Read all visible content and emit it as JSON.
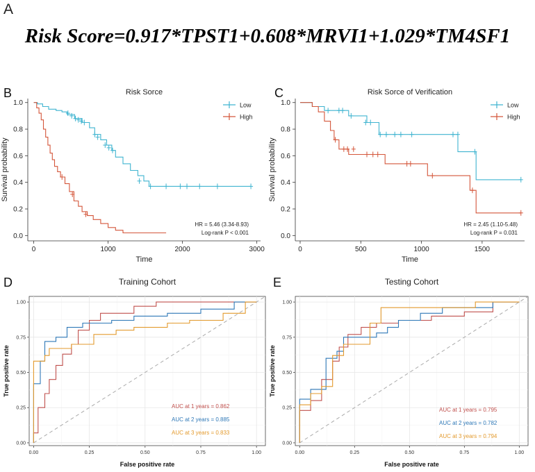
{
  "panel_letters": {
    "a": "A",
    "b": "B",
    "c": "C",
    "d": "D",
    "e": "E"
  },
  "formula": "Risk Score=0.917*TPST1+0.608*MRVI1+1.029*TM4SF1",
  "colors": {
    "low": "#3fb4d0",
    "high": "#d4563a",
    "auc1": "#c0504d",
    "auc2": "#2e78b7",
    "auc3": "#e39a2d",
    "diag": "#aaaaaa",
    "grid": "#e6e6e6",
    "roc_bg": "#ffffff"
  },
  "chart_data": [
    {
      "id": "B",
      "type": "line",
      "subtype": "kaplan-meier",
      "title": "Risk Sorce",
      "xlabel": "Time",
      "ylabel": "Survival probability",
      "xlim": [
        -80,
        3050
      ],
      "ylim": [
        -0.04,
        1.03
      ],
      "xticks": [
        0,
        1000,
        2000,
        3000
      ],
      "yticks": [
        0.0,
        0.2,
        0.4,
        0.6,
        0.8,
        1.0
      ],
      "ytick_labels": [
        "0.0",
        "0.2",
        "0.4",
        "0.6",
        "0.8",
        "1.0"
      ],
      "legend": [
        "Low",
        "High"
      ],
      "annotations": [
        "HR = 5.46 (3.34-8.93)",
        "Log-rank P < 0.001"
      ],
      "series": [
        {
          "name": "Low",
          "x": [
            0,
            50,
            120,
            200,
            300,
            380,
            450,
            550,
            650,
            750,
            820,
            900,
            980,
            1050,
            1100,
            1200,
            1300,
            1400,
            1480,
            1550,
            2920
          ],
          "y": [
            1.0,
            0.99,
            0.97,
            0.95,
            0.94,
            0.93,
            0.91,
            0.88,
            0.85,
            0.81,
            0.76,
            0.72,
            0.68,
            0.64,
            0.59,
            0.54,
            0.49,
            0.45,
            0.41,
            0.37,
            0.37
          ],
          "censor_x": [
            460,
            510,
            560,
            600,
            640,
            680,
            820,
            860,
            960,
            1010,
            1060,
            1420,
            1570,
            1780,
            1970,
            2060,
            2230,
            2470,
            2920
          ],
          "censor_y": [
            0.92,
            0.9,
            0.88,
            0.87,
            0.86,
            0.85,
            0.76,
            0.74,
            0.68,
            0.66,
            0.64,
            0.41,
            0.37,
            0.37,
            0.37,
            0.37,
            0.37,
            0.37,
            0.37
          ]
        },
        {
          "name": "High",
          "x": [
            0,
            40,
            70,
            100,
            130,
            160,
            190,
            220,
            250,
            280,
            320,
            360,
            420,
            480,
            540,
            600,
            650,
            720,
            800,
            900,
            1000,
            1100,
            1200,
            1780
          ],
          "y": [
            1.0,
            0.96,
            0.92,
            0.87,
            0.8,
            0.74,
            0.68,
            0.62,
            0.57,
            0.52,
            0.48,
            0.44,
            0.39,
            0.33,
            0.26,
            0.22,
            0.18,
            0.15,
            0.12,
            0.09,
            0.06,
            0.04,
            0.02,
            0.02
          ],
          "censor_x": [
            380,
            520,
            700
          ],
          "censor_y": [
            0.44,
            0.31,
            0.16
          ]
        }
      ]
    },
    {
      "id": "C",
      "type": "line",
      "subtype": "kaplan-meier",
      "title": "Risk Sorce of Verification",
      "xlabel": "Time",
      "ylabel": "Survival probability",
      "xlim": [
        -40,
        1850
      ],
      "ylim": [
        -0.04,
        1.03
      ],
      "xticks": [
        0,
        500,
        1000,
        1500
      ],
      "yticks": [
        0.0,
        0.2,
        0.4,
        0.6,
        0.8,
        1.0
      ],
      "ytick_labels": [
        "0.0",
        "0.2",
        "0.4",
        "0.6",
        "0.8",
        "1.0"
      ],
      "legend": [
        "Low",
        "High"
      ],
      "annotations": [
        "HR = 2.45 (1.10-5.48)",
        "Log-rank P = 0.031"
      ],
      "series": [
        {
          "name": "Low",
          "x": [
            0,
            100,
            200,
            400,
            550,
            650,
            1300,
            1450,
            1820
          ],
          "y": [
            1.0,
            0.97,
            0.94,
            0.9,
            0.85,
            0.76,
            0.63,
            0.42,
            0.42
          ],
          "censor_x": [
            230,
            320,
            350,
            420,
            540,
            580,
            660,
            710,
            780,
            830,
            920,
            1260,
            1300,
            1440,
            1820
          ],
          "censor_y": [
            0.94,
            0.94,
            0.94,
            0.9,
            0.85,
            0.85,
            0.76,
            0.76,
            0.76,
            0.76,
            0.76,
            0.76,
            0.76,
            0.63,
            0.42
          ]
        },
        {
          "name": "High",
          "x": [
            0,
            100,
            150,
            200,
            250,
            280,
            320,
            400,
            500,
            700,
            900,
            1050,
            1400,
            1450,
            1500,
            1820
          ],
          "y": [
            1.0,
            0.97,
            0.93,
            0.86,
            0.79,
            0.72,
            0.65,
            0.61,
            0.61,
            0.54,
            0.54,
            0.45,
            0.34,
            0.17,
            0.17,
            0.17
          ],
          "censor_x": [
            290,
            360,
            390,
            440,
            550,
            600,
            640,
            880,
            910,
            1090,
            1420,
            1820
          ],
          "censor_y": [
            0.72,
            0.65,
            0.65,
            0.65,
            0.61,
            0.61,
            0.61,
            0.54,
            0.54,
            0.45,
            0.34,
            0.17
          ]
        }
      ]
    },
    {
      "id": "D",
      "type": "line",
      "subtype": "roc",
      "title": "Training Cohort",
      "xlabel": "False positive rate",
      "ylabel": "True positive rate",
      "xlim": [
        -0.02,
        1.04
      ],
      "ylim": [
        -0.02,
        1.04
      ],
      "xticks": [
        0.0,
        0.25,
        0.5,
        0.75,
        1.0
      ],
      "xtick_labels": [
        "0.00",
        "0.25",
        "0.50",
        "0.75",
        "1.00"
      ],
      "yticks": [
        0.0,
        0.25,
        0.5,
        0.75,
        1.0
      ],
      "ytick_labels": [
        "0.00",
        "0.25",
        "0.50",
        "0.75",
        "1.00"
      ],
      "legend_texts": [
        "AUC at 1 years = 0.862",
        "AUC at 2 years = 0.885",
        "AUC at 3 years = 0.833"
      ],
      "series": [
        {
          "name": "AUC at 1 years = 0.862",
          "auc": 0.862,
          "fpr": [
            0.0,
            0.0,
            0.02,
            0.02,
            0.05,
            0.05,
            0.07,
            0.07,
            0.1,
            0.1,
            0.13,
            0.13,
            0.17,
            0.17,
            0.2,
            0.2,
            0.25,
            0.25,
            0.3,
            0.3,
            0.45,
            0.45,
            0.55,
            0.55,
            1.0
          ],
          "tpr": [
            0.0,
            0.07,
            0.07,
            0.25,
            0.25,
            0.35,
            0.35,
            0.45,
            0.45,
            0.55,
            0.55,
            0.63,
            0.63,
            0.7,
            0.7,
            0.8,
            0.8,
            0.87,
            0.87,
            0.92,
            0.92,
            0.97,
            0.97,
            1.0,
            1.0
          ]
        },
        {
          "name": "AUC at 2 years = 0.885",
          "auc": 0.885,
          "fpr": [
            0.0,
            0.0,
            0.03,
            0.03,
            0.05,
            0.05,
            0.1,
            0.1,
            0.15,
            0.15,
            0.22,
            0.22,
            0.35,
            0.35,
            0.45,
            0.45,
            0.6,
            0.6,
            0.75,
            0.75,
            0.9,
            0.9,
            1.0
          ],
          "tpr": [
            0.0,
            0.42,
            0.42,
            0.58,
            0.58,
            0.72,
            0.72,
            0.75,
            0.75,
            0.82,
            0.82,
            0.85,
            0.85,
            0.87,
            0.87,
            0.9,
            0.9,
            0.92,
            0.92,
            0.95,
            0.95,
            1.0,
            1.0
          ]
        },
        {
          "name": "AUC at 3 years = 0.833",
          "auc": 0.833,
          "fpr": [
            0.0,
            0.0,
            0.05,
            0.05,
            0.07,
            0.07,
            0.17,
            0.17,
            0.27,
            0.27,
            0.37,
            0.37,
            0.45,
            0.45,
            0.6,
            0.6,
            0.7,
            0.7,
            0.85,
            0.85,
            0.95,
            0.95,
            1.0
          ],
          "tpr": [
            0.0,
            0.58,
            0.58,
            0.62,
            0.62,
            0.67,
            0.67,
            0.7,
            0.7,
            0.77,
            0.77,
            0.8,
            0.8,
            0.82,
            0.82,
            0.85,
            0.85,
            0.87,
            0.87,
            0.92,
            0.92,
            1.0,
            1.0
          ]
        }
      ]
    },
    {
      "id": "E",
      "type": "line",
      "subtype": "roc",
      "title": "Testing Cohort",
      "xlabel": "False positive rate",
      "ylabel": "True positive rate",
      "xlim": [
        -0.02,
        1.04
      ],
      "ylim": [
        -0.02,
        1.04
      ],
      "xticks": [
        0.0,
        0.25,
        0.5,
        0.75,
        1.0
      ],
      "xtick_labels": [
        "0.00",
        "0.25",
        "0.50",
        "0.75",
        "1.00"
      ],
      "yticks": [
        0.0,
        0.25,
        0.5,
        0.75,
        1.0
      ],
      "ytick_labels": [
        "0.00",
        "0.25",
        "0.50",
        "0.75",
        "1.00"
      ],
      "legend_texts": [
        "AUC at 1 years = 0.795",
        "AUC at 2 years = 0.782",
        "AUC at 3 years = 0.794"
      ],
      "series": [
        {
          "name": "AUC at 1 years = 0.795",
          "auc": 0.795,
          "fpr": [
            0.0,
            0.0,
            0.05,
            0.05,
            0.1,
            0.1,
            0.15,
            0.15,
            0.18,
            0.18,
            0.22,
            0.22,
            0.28,
            0.28,
            0.35,
            0.35,
            0.45,
            0.45,
            0.6,
            0.6,
            0.75,
            0.75,
            0.88,
            0.88,
            1.0
          ],
          "tpr": [
            0.0,
            0.23,
            0.23,
            0.3,
            0.3,
            0.45,
            0.45,
            0.58,
            0.58,
            0.68,
            0.68,
            0.77,
            0.77,
            0.82,
            0.82,
            0.85,
            0.85,
            0.87,
            0.87,
            0.9,
            0.9,
            0.93,
            0.93,
            1.0,
            1.0
          ]
        },
        {
          "name": "AUC at 2 years = 0.782",
          "auc": 0.782,
          "fpr": [
            0.0,
            0.0,
            0.05,
            0.05,
            0.12,
            0.12,
            0.17,
            0.17,
            0.2,
            0.2,
            0.35,
            0.35,
            0.4,
            0.4,
            0.45,
            0.45,
            0.55,
            0.55,
            0.65,
            0.65,
            0.88,
            0.88,
            1.0
          ],
          "tpr": [
            0.0,
            0.31,
            0.31,
            0.38,
            0.38,
            0.6,
            0.6,
            0.65,
            0.65,
            0.75,
            0.75,
            0.78,
            0.78,
            0.82,
            0.82,
            0.87,
            0.87,
            0.92,
            0.92,
            0.96,
            0.96,
            1.0,
            1.0
          ]
        },
        {
          "name": "AUC at 3 years = 0.794",
          "auc": 0.794,
          "fpr": [
            0.0,
            0.0,
            0.05,
            0.05,
            0.1,
            0.1,
            0.15,
            0.15,
            0.2,
            0.2,
            0.32,
            0.32,
            0.37,
            0.37,
            0.8,
            0.8,
            1.0
          ],
          "tpr": [
            0.0,
            0.27,
            0.27,
            0.35,
            0.35,
            0.4,
            0.4,
            0.62,
            0.62,
            0.7,
            0.7,
            0.85,
            0.85,
            0.96,
            0.96,
            1.0,
            1.0
          ]
        }
      ]
    }
  ]
}
